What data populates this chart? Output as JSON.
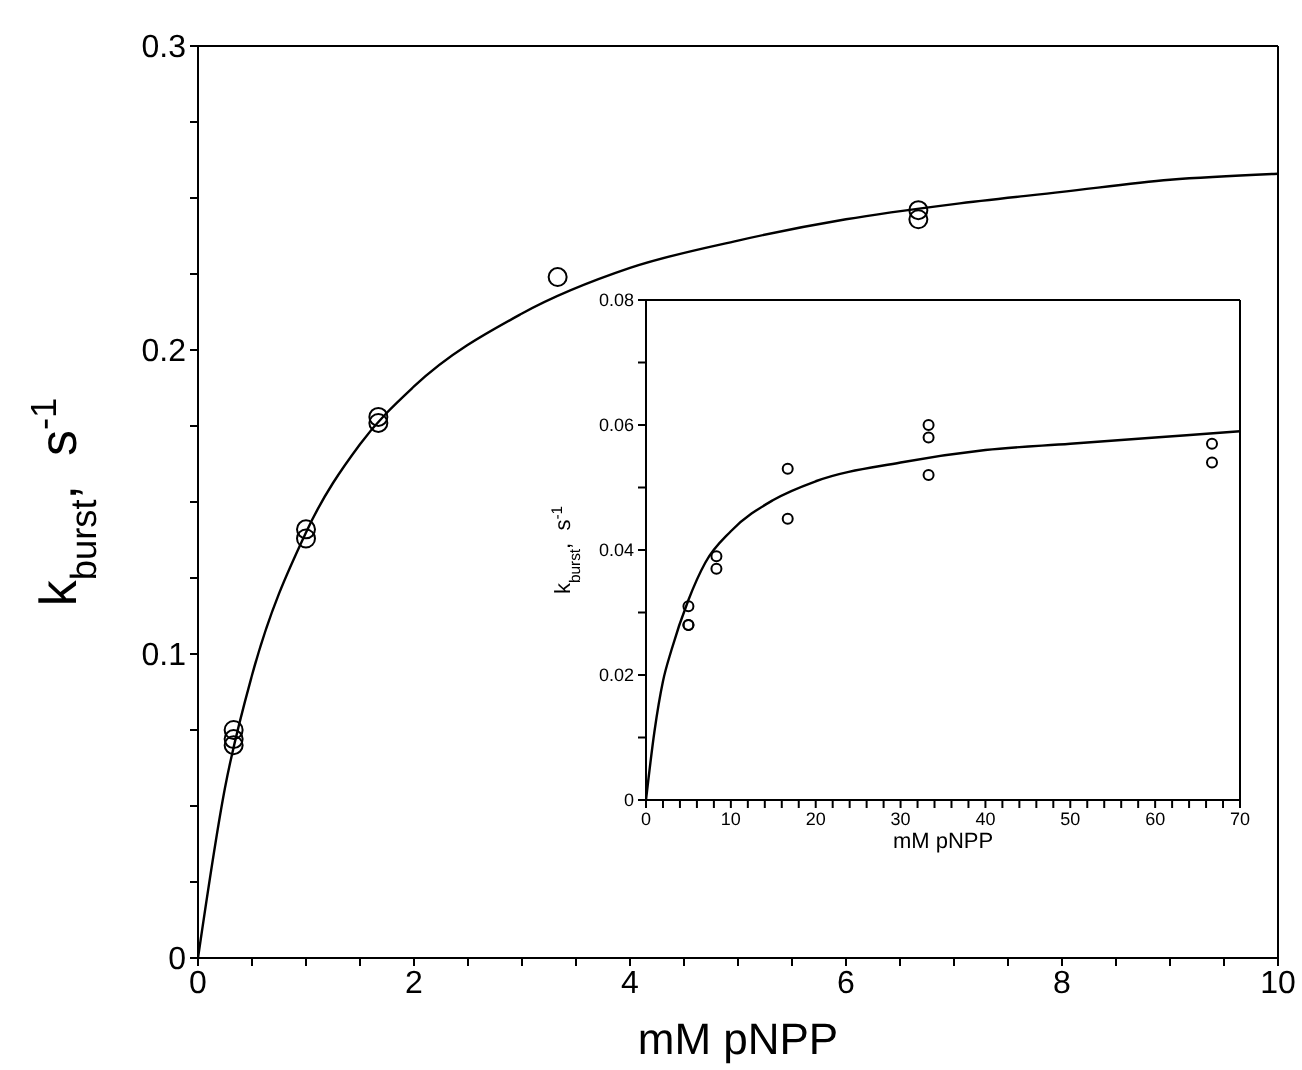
{
  "chart_data": [
    {
      "type": "scatter",
      "xlabel": "mM pNPP",
      "ylabel": "k$_{burst}$,  s$^{-1}$",
      "xlim": [
        0,
        10
      ],
      "ylim": [
        0,
        0.3
      ],
      "marker": "circle",
      "xticks": [
        0,
        {
          "value": 0.5,
          "label": null
        },
        {
          "value": 1,
          "label": null
        },
        {
          "value": 1.5,
          "label": null
        },
        2,
        {
          "value": 2.5,
          "label": null
        },
        {
          "value": 3,
          "label": null
        },
        {
          "value": 3.5,
          "label": null
        },
        4,
        {
          "value": 4.5,
          "label": null
        },
        {
          "value": 5,
          "label": null
        },
        {
          "value": 5.5,
          "label": null
        },
        6,
        {
          "value": 6.5,
          "label": null
        },
        {
          "value": 7,
          "label": null
        },
        {
          "value": 7.5,
          "label": null
        },
        8,
        {
          "value": 8.5,
          "label": null
        },
        {
          "value": 9,
          "label": null
        },
        {
          "value": 9.5,
          "label": null
        },
        10
      ],
      "yticks": [
        0,
        {
          "value": 0.025,
          "label": null
        },
        {
          "value": 0.05,
          "label": null
        },
        {
          "value": 0.075,
          "label": null
        },
        0.1,
        {
          "value": 0.125,
          "label": null
        },
        {
          "value": 0.15,
          "label": null
        },
        {
          "value": 0.175,
          "label": null
        },
        0.2,
        {
          "value": 0.225,
          "label": null
        },
        {
          "value": 0.25,
          "label": null
        },
        {
          "value": 0.275,
          "label": null
        },
        0.3
      ],
      "series": [
        {
          "color": "#000000",
          "x": [
            0.33,
            0.33,
            0.33,
            1,
            1,
            1.67,
            1.67,
            3.33,
            6.67,
            6.67
          ],
          "values": [
            0.075,
            0.072,
            0.07,
            0.141,
            0.138,
            0.178,
            0.176,
            0.224,
            0.246,
            0.243
          ]
        },
        {
          "type": "line",
          "color": "#000000",
          "marker": "none",
          "x": [
            0,
            0.25,
            0.5,
            1,
            1.5,
            2,
            3,
            4,
            5,
            6,
            7,
            8,
            9,
            10
          ],
          "values": [
            0,
            0.056,
            0.093,
            0.14,
            0.169,
            0.188,
            0.212,
            0.227,
            0.236,
            0.243,
            0.248,
            0.252,
            0.256,
            0.258
          ]
        }
      ]
    },
    {
      "type": "scatter",
      "xlabel": "mM pNPP",
      "ylabel": "k$_{burst}$,  s$^{-1}$",
      "xlim": [
        0,
        70
      ],
      "ylim": [
        0,
        0.08
      ],
      "marker": "circle",
      "xticks": [
        0,
        {
          "value": 2,
          "label": null
        },
        {
          "value": 4,
          "label": null
        },
        {
          "value": 6,
          "label": null
        },
        {
          "value": 8,
          "label": null
        },
        10,
        {
          "value": 12,
          "label": null
        },
        {
          "value": 14,
          "label": null
        },
        {
          "value": 16,
          "label": null
        },
        {
          "value": 18,
          "label": null
        },
        20,
        {
          "value": 22,
          "label": null
        },
        {
          "value": 24,
          "label": null
        },
        {
          "value": 26,
          "label": null
        },
        {
          "value": 28,
          "label": null
        },
        30,
        {
          "value": 32,
          "label": null
        },
        {
          "value": 34,
          "label": null
        },
        {
          "value": 36,
          "label": null
        },
        {
          "value": 38,
          "label": null
        },
        40,
        {
          "value": 42,
          "label": null
        },
        {
          "value": 44,
          "label": null
        },
        {
          "value": 46,
          "label": null
        },
        {
          "value": 48,
          "label": null
        },
        50,
        {
          "value": 52,
          "label": null
        },
        {
          "value": 54,
          "label": null
        },
        {
          "value": 56,
          "label": null
        },
        {
          "value": 58,
          "label": null
        },
        60,
        {
          "value": 62,
          "label": null
        },
        {
          "value": 64,
          "label": null
        },
        {
          "value": 66,
          "label": null
        },
        {
          "value": 68,
          "label": null
        },
        70
      ],
      "yticks": [
        0,
        {
          "value": 0.01,
          "label": null
        },
        0.02,
        {
          "value": 0.03,
          "label": null
        },
        0.04,
        {
          "value": 0.05,
          "label": null
        },
        0.06,
        {
          "value": 0.07,
          "label": null
        },
        0.08
      ],
      "series": [
        {
          "color": "#000000",
          "x": [
            5,
            5,
            5,
            8.3,
            8.3,
            16.7,
            16.7,
            33.3,
            33.3,
            33.3,
            66.7,
            66.7
          ],
          "values": [
            0.031,
            0.028,
            0.028,
            0.039,
            0.037,
            0.053,
            0.045,
            0.06,
            0.058,
            0.052,
            0.057,
            0.054
          ]
        },
        {
          "type": "line",
          "color": "#000000",
          "marker": "none",
          "x": [
            0,
            1,
            2,
            3,
            5,
            7,
            10,
            15,
            20,
            30,
            40,
            50,
            60,
            70
          ],
          "values": [
            0,
            0.011,
            0.019,
            0.024,
            0.032,
            0.038,
            0.043,
            0.048,
            0.051,
            0.054,
            0.056,
            0.057,
            0.058,
            0.059
          ]
        }
      ]
    }
  ]
}
